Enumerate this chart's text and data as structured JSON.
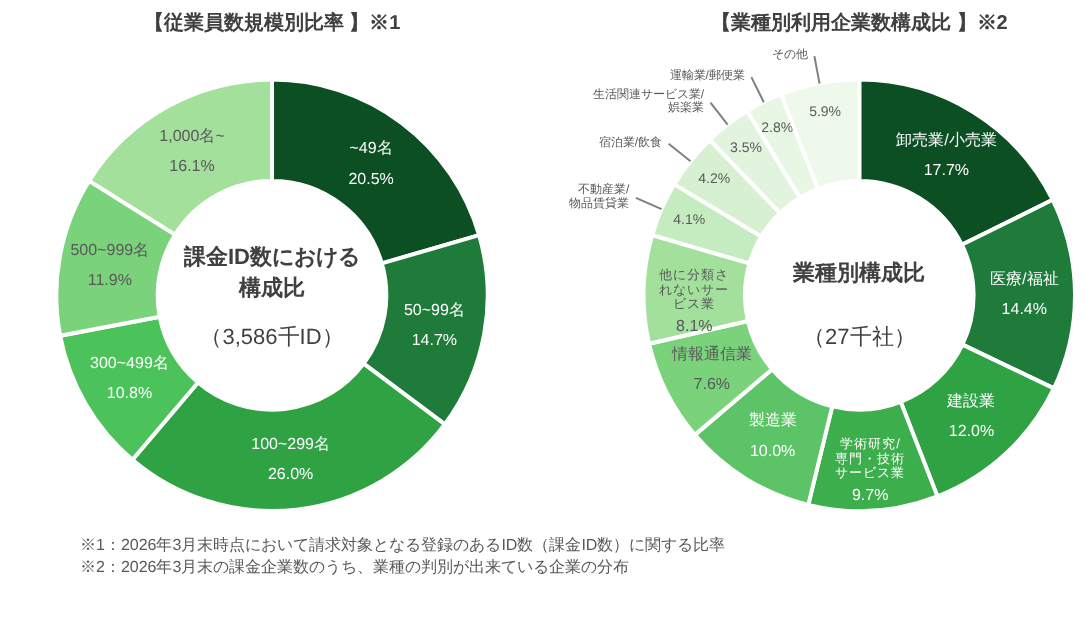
{
  "chart_data": [
    {
      "type": "donut",
      "title": "【従業員数規模別比率 】※1",
      "categories": [
        "~49名",
        "50~99名",
        "100~299名",
        "300~499名",
        "500~999名",
        "1,000名~"
      ],
      "values": [
        20.5,
        14.7,
        26.0,
        10.8,
        11.9,
        16.1
      ],
      "colors": [
        "#0b4f23",
        "#1e7b3a",
        "#2fa243",
        "#4cc35a",
        "#7ad37b",
        "#a3e09c"
      ],
      "value_labels": [
        "20.5%",
        "14.7%",
        "26.0%",
        "10.8%",
        "11.9%",
        "16.1%"
      ],
      "annotations": [
        "課金ID数における構成比",
        "（3,586千ID）",
        "※1：2026年3月末時点において請求対象となる登録のあるID数（課金ID数）に関する比率"
      ]
    },
    {
      "type": "donut",
      "title": "【業種別利用企業数構成比 】※2",
      "categories": [
        "卸売業/小売業",
        "医療/福祉",
        "建設業",
        "学術研究/専門・技術サービス業",
        "製造業",
        "情報通信業",
        "他に分類されないサービス業",
        "不動産業/物品賃貸業",
        "宿泊業/飲食",
        "生活関連サービス業/娯楽業",
        "運輸業/郵便業",
        "その他"
      ],
      "values": [
        17.7,
        14.4,
        12.0,
        9.7,
        10.0,
        7.6,
        8.1,
        4.1,
        4.2,
        3.5,
        2.8,
        5.9
      ],
      "colors": [
        "#0b4f23",
        "#1e7b3a",
        "#2fa243",
        "#3dae4c",
        "#5cc466",
        "#7ad37b",
        "#a3e09c",
        "#c5ebc0",
        "#d6f0d1",
        "#e2f4de",
        "#e8f6e4",
        "#eef8eb"
      ],
      "value_labels": [
        "17.7%",
        "14.4%",
        "12.0%",
        "9.7%",
        "10.0%",
        "7.6%",
        "8.1%",
        "4.1%",
        "4.2%",
        "3.5%",
        "2.8%",
        "5.9%"
      ],
      "annotations": [
        "業種別構成比",
        "（27千社）",
        "※2：2026年3月末の課金企業数のうち、業種の判別が出来ている企業の分布"
      ]
    }
  ]
}
